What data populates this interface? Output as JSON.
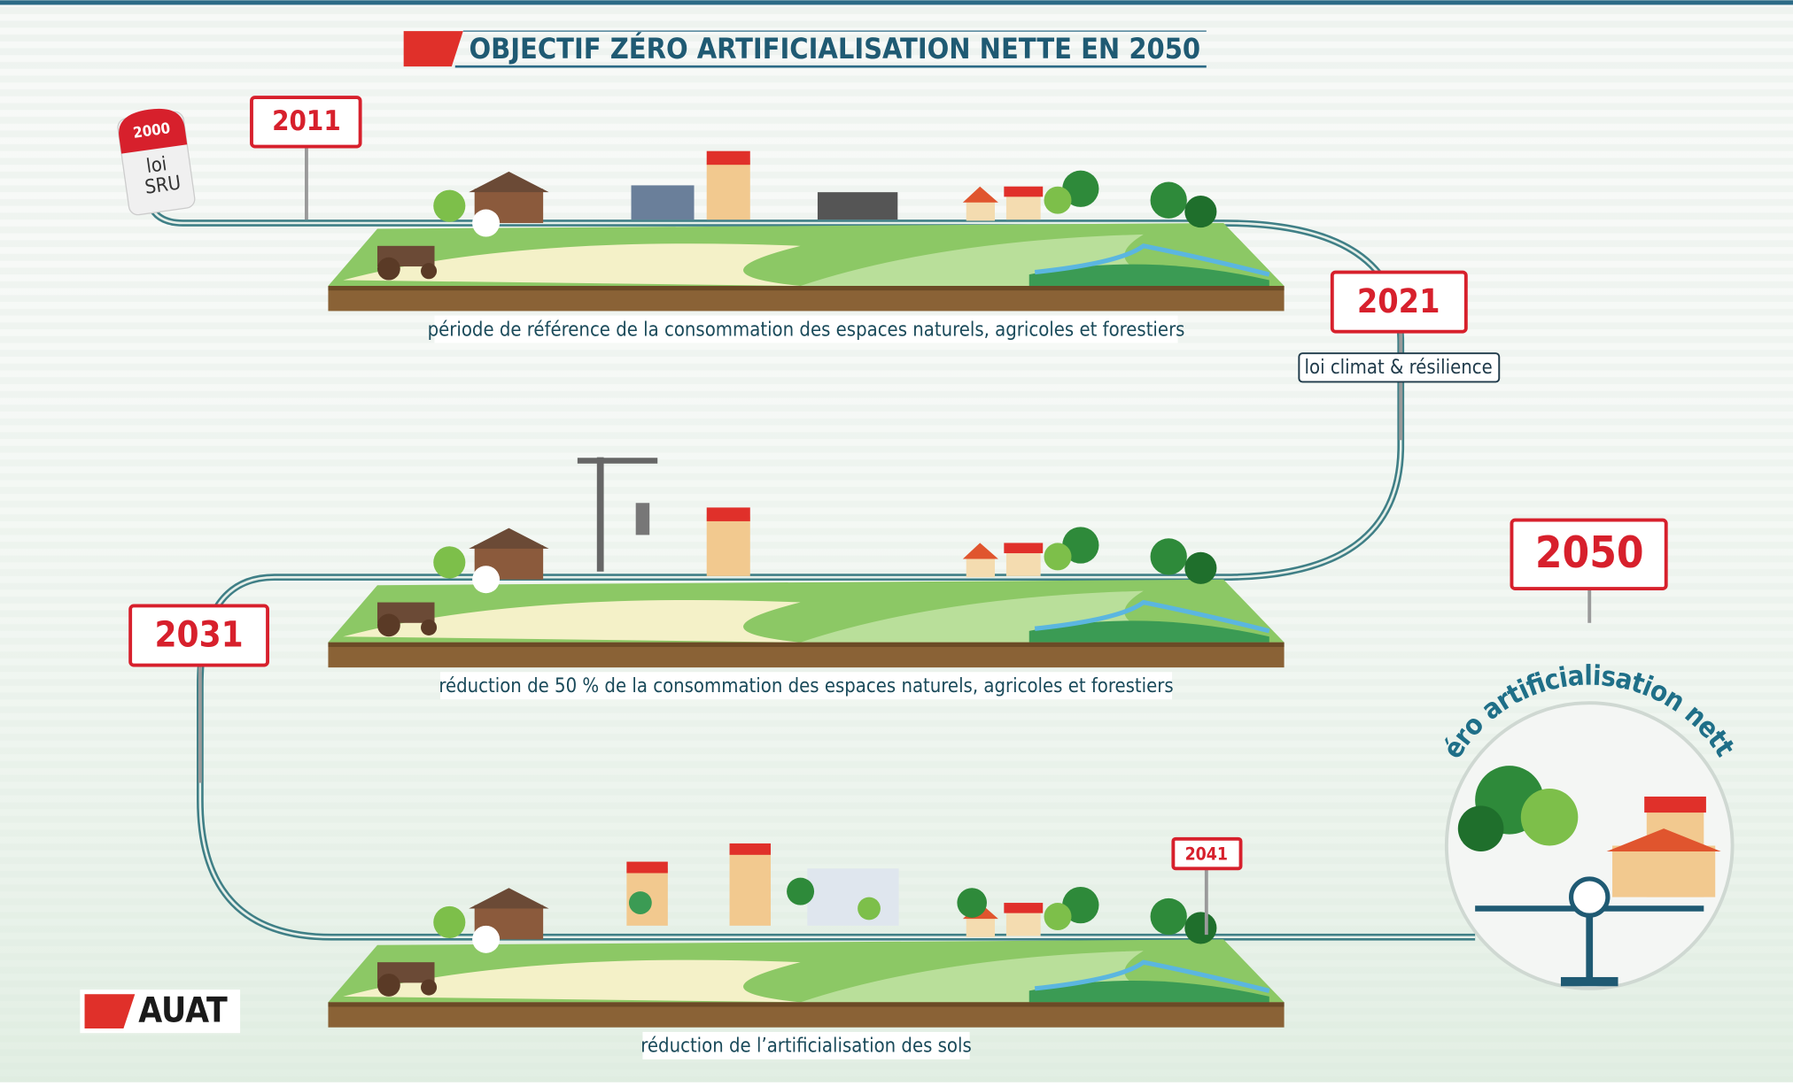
{
  "title": "OBJECTIF ZÉRO ARTIFICIALISATION NETTE EN 2050",
  "milestones": [
    {
      "year": "2000",
      "label_lines": [
        "loi",
        "SRU"
      ]
    },
    {
      "year": "2011"
    },
    {
      "year": "2021",
      "label": "loi climat & résilience"
    },
    {
      "year": "2031"
    },
    {
      "year": "2041"
    },
    {
      "year": "2050",
      "label": "zéro artificialisation nette"
    }
  ],
  "captions": [
    "période de référence de la consommation des espaces naturels, agricoles et forestiers",
    "réduction de 50 % de la consommation des espaces naturels, agricoles et forestiers",
    "réduction de l’artificialisation des sols"
  ],
  "logo": "AUAT"
}
